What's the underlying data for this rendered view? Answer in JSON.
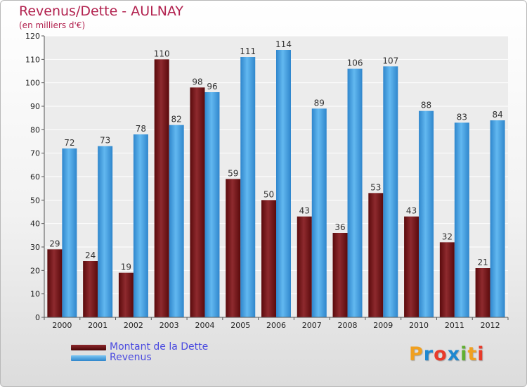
{
  "header": {
    "title": "Revenus/Dette - AULNAY",
    "subtitle": "(en milliers d'€)"
  },
  "legend": {
    "items": [
      {
        "label": "Montant de la Dette",
        "color": "#6e0f12"
      },
      {
        "label": "Revenus",
        "color": "#4ea8e6"
      }
    ]
  },
  "logo": {
    "letters": [
      "P",
      "r",
      "o",
      "x",
      "i",
      "t",
      "i"
    ],
    "colors": [
      "#f0a020",
      "#1e88d0",
      "#e83a2a",
      "#1e88d0",
      "#60b030",
      "#f0a020",
      "#e83a2a"
    ]
  },
  "chart_data": {
    "type": "bar",
    "title": "Revenus/Dette - AULNAY",
    "subtitle": "(en milliers d'€)",
    "xlabel": "",
    "ylabel": "",
    "categories": [
      "2000",
      "2001",
      "2002",
      "2003",
      "2004",
      "2005",
      "2006",
      "2007",
      "2008",
      "2009",
      "2010",
      "2011",
      "2012"
    ],
    "series": [
      {
        "name": "Montant de la Dette",
        "color": "#7a1a1e",
        "values": [
          29,
          24,
          19,
          110,
          98,
          59,
          50,
          43,
          36,
          53,
          43,
          32,
          21
        ]
      },
      {
        "name": "Revenus",
        "color": "#4ea8e6",
        "values": [
          72,
          73,
          78,
          82,
          96,
          111,
          114,
          89,
          106,
          107,
          88,
          83,
          84
        ]
      }
    ],
    "ylim": [
      0,
      120
    ],
    "yticks": [
      0,
      10,
      20,
      30,
      40,
      50,
      60,
      70,
      80,
      90,
      100,
      110,
      120
    ],
    "grid": true,
    "legend_position": "bottom-left"
  }
}
